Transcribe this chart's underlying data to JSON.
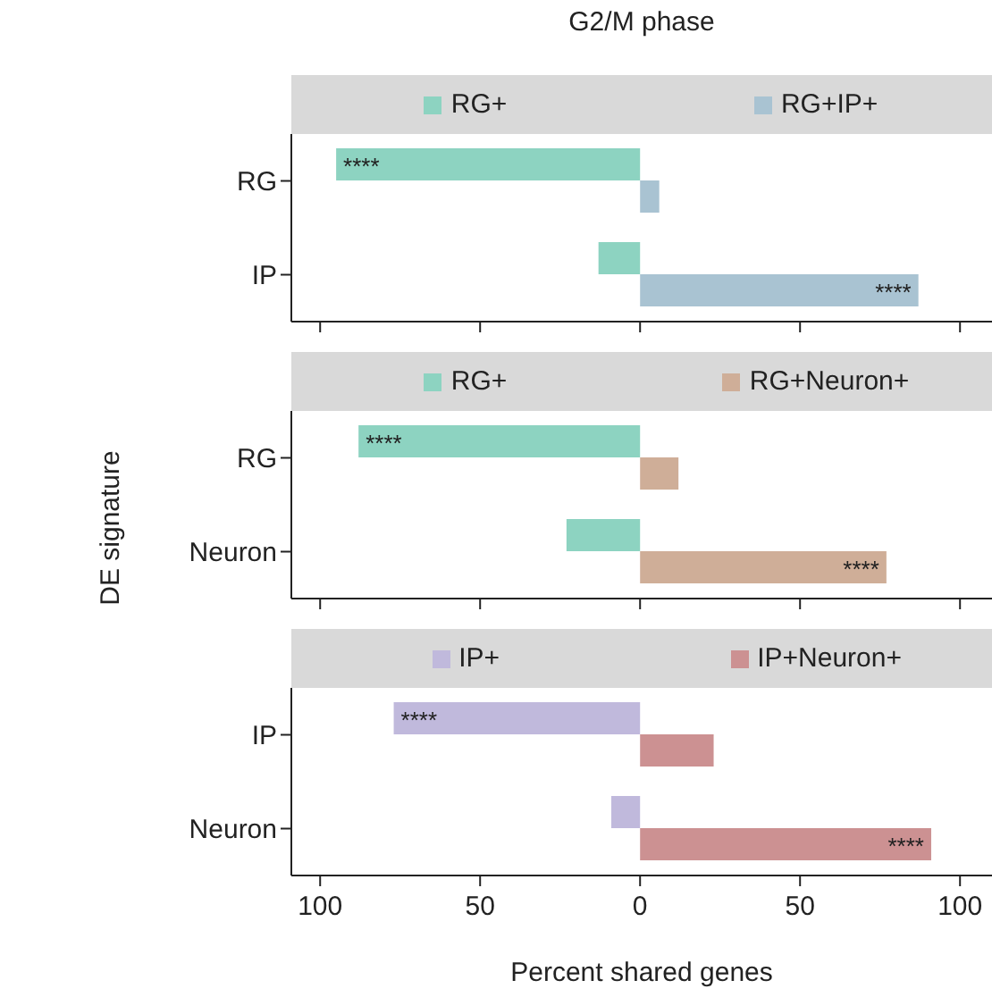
{
  "chart_data": [
    {
      "type": "bar",
      "orientation": "horizontal",
      "legend": "top",
      "title": "G2/M phase",
      "categories": [
        "RG",
        "IP"
      ],
      "series": [
        {
          "name": "RG+",
          "color": "#8dd3c1",
          "values": [
            -95,
            -13
          ]
        },
        {
          "name": "RG+IP+",
          "color": "#a9c3d2",
          "values": [
            6,
            87
          ]
        }
      ],
      "xlim": [
        -109,
        110
      ],
      "xticks": [
        {
          "value": -100,
          "label": null
        },
        {
          "value": -50,
          "label": null
        },
        {
          "value": 0,
          "label": null
        },
        {
          "value": 50,
          "label": null
        },
        {
          "value": 100,
          "label": null
        }
      ],
      "tick_labels": "y",
      "annotations": [
        {
          "text": "****",
          "x": -95,
          "y": "RG"
        },
        {
          "text": "****",
          "x": 87,
          "y": "IP"
        }
      ]
    },
    {
      "type": "bar",
      "orientation": "horizontal",
      "legend": "top",
      "ylabel": "DE signature",
      "categories": [
        "RG",
        "Neuron"
      ],
      "series": [
        {
          "name": "RG+",
          "color": "#8dd3c1",
          "values": [
            -88,
            -23
          ]
        },
        {
          "name": "RG+Neuron+",
          "color": "#cfae98",
          "values": [
            12,
            77
          ]
        }
      ],
      "xlim": [
        -109,
        110
      ],
      "xticks": [
        {
          "value": -100,
          "label": null
        },
        {
          "value": -50,
          "label": null
        },
        {
          "value": 0,
          "label": null
        },
        {
          "value": 50,
          "label": null
        },
        {
          "value": 100,
          "label": null
        }
      ],
      "tick_labels": "y",
      "annotations": [
        {
          "text": "****",
          "x": -88,
          "y": "RG"
        },
        {
          "text": "****",
          "x": 77,
          "y": "Neuron"
        }
      ]
    },
    {
      "type": "bar",
      "orientation": "horizontal",
      "legend": "top",
      "xlabel": "Percent shared genes",
      "categories": [
        "IP",
        "Neuron"
      ],
      "series": [
        {
          "name": "IP+",
          "color": "#c0b9dc",
          "values": [
            -77,
            -9
          ]
        },
        {
          "name": "IP+Neuron+",
          "color": "#cc9192",
          "values": [
            23,
            91
          ]
        }
      ],
      "xlim": [
        -109,
        110
      ],
      "xticks": [
        {
          "value": -100,
          "label": "100"
        },
        {
          "value": -50,
          "label": "50"
        },
        0,
        50,
        100
      ],
      "annotations": [
        {
          "text": "****",
          "x": -77,
          "y": "IP"
        },
        {
          "text": "****",
          "x": 91,
          "y": "Neuron"
        }
      ]
    }
  ]
}
